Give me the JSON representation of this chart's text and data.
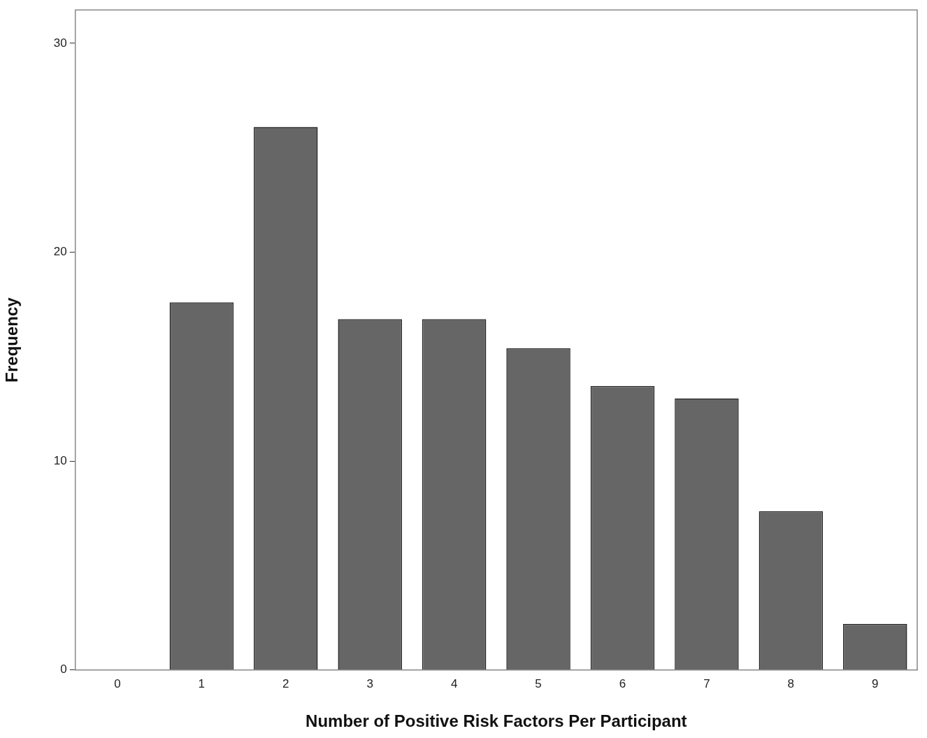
{
  "chart_data": {
    "type": "bar",
    "xlabel": "Number of Positive Risk Factors Per Participant",
    "ylabel": "Frequency",
    "categories": [
      "0",
      "1",
      "2",
      "3",
      "4",
      "5",
      "6",
      "7",
      "8",
      "9"
    ],
    "values": [
      0,
      17.6,
      26.0,
      16.8,
      16.8,
      15.4,
      13.6,
      13.0,
      7.6,
      2.2
    ],
    "color": "#666666",
    "ylim": [
      0,
      31.6
    ],
    "yticks": [
      0,
      10,
      20,
      30
    ],
    "grid": false,
    "legend": false
  }
}
